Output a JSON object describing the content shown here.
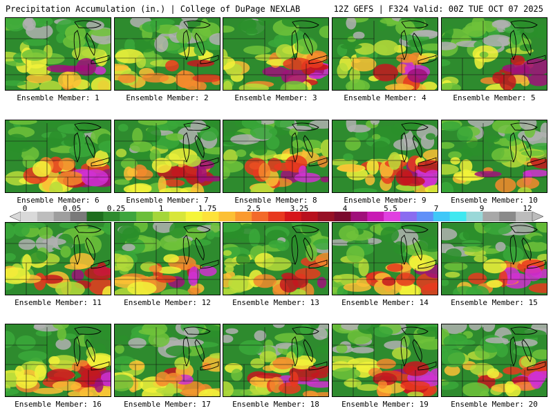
{
  "header": {
    "title": "Precipitation Accumulation (in.) | College of DuPage NEXLAB",
    "run_info": "12Z GEFS | F324 Valid: 00Z TUE OCT 07 2025"
  },
  "panels": [
    {
      "label": "Ensemble Member: 1"
    },
    {
      "label": "Ensemble Member: 2"
    },
    {
      "label": "Ensemble Member: 3"
    },
    {
      "label": "Ensemble Member: 4"
    },
    {
      "label": "Ensemble Member: 5"
    },
    {
      "label": "Ensemble Member: 6"
    },
    {
      "label": "Ensemble Member: 7"
    },
    {
      "label": "Ensemble Member: 8"
    },
    {
      "label": "Ensemble Member: 9"
    },
    {
      "label": "Ensemble Member: 10"
    },
    {
      "label": "Ensemble Member: 11"
    },
    {
      "label": "Ensemble Member: 12"
    },
    {
      "label": "Ensemble Member: 13"
    },
    {
      "label": "Ensemble Member: 14"
    },
    {
      "label": "Ensemble Member: 15"
    },
    {
      "label": "Ensemble Member: 16"
    },
    {
      "label": "Ensemble Member: 17"
    },
    {
      "label": "Ensemble Member: 18"
    },
    {
      "label": "Ensemble Member: 19"
    },
    {
      "label": "Ensemble Member: 20"
    }
  ],
  "colorbar": {
    "tick_labels": [
      "0",
      "0.05",
      "0.25",
      "1",
      "1.75",
      "2.5",
      "3.25",
      "4",
      "5.5",
      "7",
      "9",
      "12"
    ],
    "colors": [
      "#d9d9d9",
      "#bdbdbd",
      "#9e9e9e",
      "#7a7a7a",
      "#1e6e1e",
      "#2e8b2e",
      "#3ea53e",
      "#6bbf3a",
      "#a4d63a",
      "#d8e63a",
      "#f5f53a",
      "#fde23a",
      "#fcc035",
      "#fa9a30",
      "#f36a2a",
      "#e8391f",
      "#d6161a",
      "#b8101e",
      "#961025",
      "#7a0a2e",
      "#a0107a",
      "#c81ab4",
      "#e040e0",
      "#8a6cf0",
      "#6090f8",
      "#40c8f8",
      "#40e8f0",
      "#9ad8d8",
      "#a8a8a8",
      "#8a8a8a",
      "#bcbcbc"
    ]
  }
}
